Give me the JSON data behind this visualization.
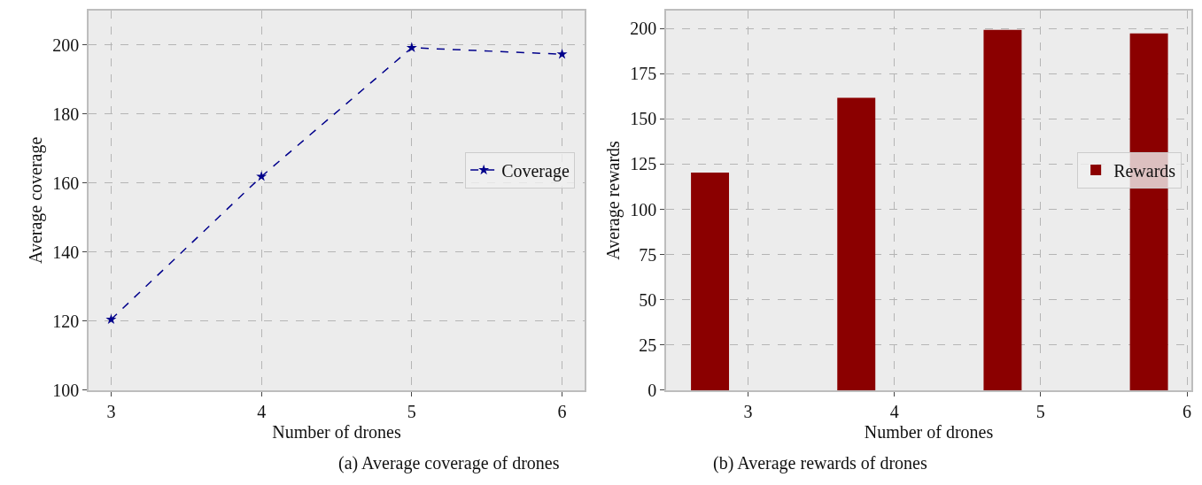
{
  "chart_data": [
    {
      "type": "line",
      "x": [
        3,
        4,
        5,
        6
      ],
      "series": [
        {
          "name": "Coverage",
          "color": "#00008b",
          "values": [
            120.5,
            161.9,
            199.2,
            197.3
          ]
        }
      ],
      "xlabel": "Number of drones",
      "ylabel": "Average coverage",
      "xlim": [
        2.85,
        6.15
      ],
      "xticks": [
        3,
        4,
        5,
        6
      ],
      "ylim": [
        100,
        210
      ],
      "yticks": [
        100,
        120,
        140,
        160,
        180,
        200
      ],
      "grid": true,
      "legend": "right",
      "marker": "star",
      "line_style": "dashed",
      "annotations": [
        "(a) Average coverage of drones"
      ]
    },
    {
      "type": "bar",
      "x": [
        2.74,
        3.74,
        4.74,
        5.74
      ],
      "series": [
        {
          "name": "Rewards",
          "color": "#8b0000",
          "values": [
            120.4,
            161.7,
            199.2,
            197.3
          ]
        }
      ],
      "xlabel": "Number of drones",
      "ylabel": "Average rewards",
      "xlim": [
        2.44,
        6.03
      ],
      "xticks": [
        3,
        4,
        5,
        6
      ],
      "ylim": [
        0,
        210
      ],
      "yticks": [
        0,
        25,
        50,
        75,
        100,
        125,
        150,
        175,
        200
      ],
      "grid": true,
      "legend": "right",
      "annotations": [
        "(b) Average rewards of drones"
      ]
    }
  ]
}
